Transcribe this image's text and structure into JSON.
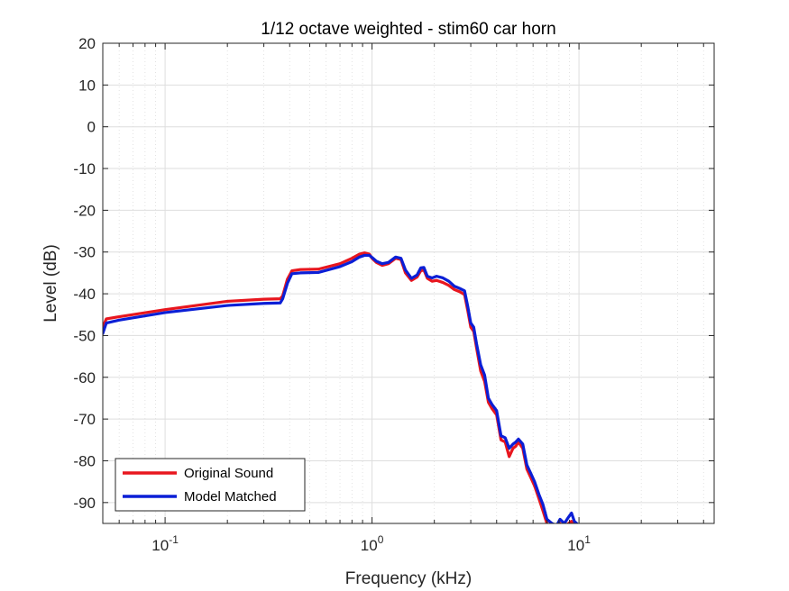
{
  "chart_data": {
    "type": "line",
    "title": "1/12 octave weighted - stim60 car horn",
    "xlabel": "Frequency (kHz)",
    "ylabel": "Level (dB)",
    "xscale": "log",
    "xlim": [
      0.05,
      45
    ],
    "ylim": [
      -95,
      20
    ],
    "x_ticks": [
      0.1,
      1,
      10
    ],
    "x_tick_labels": [
      {
        "base": "10",
        "exp": "-1"
      },
      {
        "base": "10",
        "exp": "0"
      },
      {
        "base": "10",
        "exp": "1"
      }
    ],
    "y_ticks": [
      20,
      10,
      0,
      -10,
      -20,
      -30,
      -40,
      -50,
      -60,
      -70,
      -80,
      -90
    ],
    "y_tick_labels": [
      "20",
      "10",
      "0",
      "-10",
      "-20",
      "-30",
      "-40",
      "-50",
      "-60",
      "-70",
      "-80",
      "-90"
    ],
    "grid": true,
    "minor_grid": true,
    "legend_position": "bottom-left",
    "series": [
      {
        "name": "Original Sound",
        "color": "#e8161e",
        "x": [
          0.05,
          0.052,
          0.06,
          0.1,
          0.2,
          0.3,
          0.36,
          0.37,
          0.39,
          0.41,
          0.45,
          0.55,
          0.7,
          0.8,
          0.87,
          0.92,
          0.97,
          1.0,
          1.05,
          1.12,
          1.2,
          1.3,
          1.38,
          1.45,
          1.55,
          1.65,
          1.72,
          1.78,
          1.85,
          1.95,
          2.05,
          2.2,
          2.35,
          2.5,
          2.65,
          2.8,
          2.9,
          3.0,
          3.1,
          3.2,
          3.35,
          3.5,
          3.65,
          3.8,
          4.0,
          4.2,
          4.4,
          4.6,
          4.8,
          4.95,
          5.1,
          5.35,
          5.6,
          5.85,
          6.1,
          6.4,
          6.7,
          7.0,
          7.4,
          7.8,
          8.1,
          8.5,
          8.9,
          9.2,
          9.5,
          9.75
        ],
        "y": [
          -48,
          -46,
          -45.5,
          -43.8,
          -41.8,
          -41.3,
          -41.2,
          -40.5,
          -36.5,
          -34.5,
          -34.2,
          -34.1,
          -32.8,
          -31.5,
          -30.5,
          -30.2,
          -30.5,
          -31.5,
          -32.5,
          -33.2,
          -32.8,
          -31.5,
          -31.8,
          -35,
          -36.8,
          -36,
          -34.5,
          -34.3,
          -36.3,
          -37,
          -36.8,
          -37.3,
          -38,
          -39,
          -39.5,
          -40.2,
          -44,
          -48,
          -49,
          -53,
          -58.5,
          -61,
          -66,
          -67.5,
          -69,
          -75,
          -75.5,
          -79,
          -77,
          -76.5,
          -75.5,
          -77,
          -82,
          -84,
          -86,
          -89,
          -92,
          -95,
          -96,
          -96,
          -95,
          -96,
          -95,
          -94.5,
          -95.5,
          -96
        ]
      },
      {
        "name": "Model Matched",
        "color": "#0b1fd6",
        "x": [
          0.05,
          0.052,
          0.06,
          0.1,
          0.2,
          0.3,
          0.36,
          0.37,
          0.39,
          0.41,
          0.45,
          0.55,
          0.7,
          0.8,
          0.87,
          0.92,
          0.97,
          1.0,
          1.05,
          1.12,
          1.2,
          1.3,
          1.38,
          1.45,
          1.55,
          1.65,
          1.72,
          1.78,
          1.85,
          1.95,
          2.05,
          2.2,
          2.35,
          2.5,
          2.65,
          2.8,
          2.9,
          3.0,
          3.1,
          3.2,
          3.35,
          3.5,
          3.65,
          3.8,
          4.0,
          4.2,
          4.4,
          4.6,
          4.8,
          4.95,
          5.1,
          5.35,
          5.6,
          5.85,
          6.1,
          6.4,
          6.7,
          7.0,
          7.4,
          7.8,
          8.1,
          8.5,
          8.9,
          9.2,
          9.5,
          9.75
        ],
        "y": [
          -49.5,
          -47,
          -46.3,
          -44.5,
          -42.8,
          -42.3,
          -42.2,
          -41.2,
          -37.5,
          -35.2,
          -35,
          -34.9,
          -33.5,
          -32.3,
          -31.2,
          -30.8,
          -30.8,
          -31.3,
          -32.2,
          -32.8,
          -32.5,
          -31.2,
          -31.5,
          -34.3,
          -36.3,
          -35.5,
          -33.8,
          -33.7,
          -35.8,
          -36.2,
          -35.8,
          -36.2,
          -37,
          -38.2,
          -38.7,
          -39.3,
          -43,
          -47,
          -48,
          -52,
          -57,
          -59.5,
          -65,
          -66.5,
          -68,
          -74,
          -74.5,
          -77,
          -76,
          -75.5,
          -74.8,
          -76,
          -81,
          -83,
          -85,
          -88,
          -90.5,
          -94,
          -95,
          -95.5,
          -94,
          -95,
          -93.5,
          -92.5,
          -94.5,
          -95
        ]
      }
    ]
  }
}
